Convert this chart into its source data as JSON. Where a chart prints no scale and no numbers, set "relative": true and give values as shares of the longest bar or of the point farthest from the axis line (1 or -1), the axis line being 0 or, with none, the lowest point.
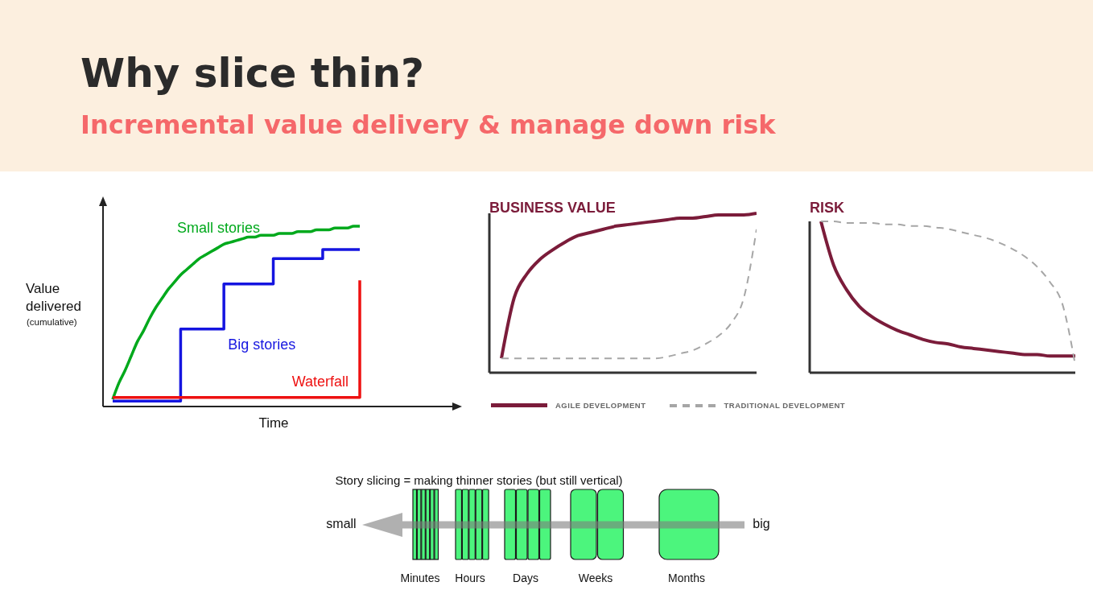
{
  "chart_data": [
    {
      "type": "other",
      "title": "Why slice thin?",
      "subtitle": "Incremental value delivery & manage down risk"
    },
    {
      "type": "line",
      "relative": true,
      "xlabel": "Time",
      "ylabel": "Value delivered",
      "annotations": [
        "(cumulative)"
      ],
      "categories": [
        null,
        null,
        null,
        null,
        null,
        null,
        null,
        null,
        null,
        null,
        null,
        null,
        null,
        null,
        null,
        null,
        null,
        null,
        null,
        null,
        null,
        null,
        null,
        null,
        null,
        null,
        null,
        null,
        null,
        null,
        null,
        null,
        null,
        null,
        null,
        null,
        null,
        null,
        null,
        null,
        null
      ],
      "series": [
        {
          "name": "Small stories",
          "color": "#00a91c",
          "values": [
            0.04,
            0.13,
            0.2,
            0.28,
            0.36,
            0.42,
            0.49,
            0.55,
            0.6,
            0.65,
            0.69,
            0.73,
            0.76,
            0.79,
            0.82,
            0.84,
            0.86,
            0.88,
            0.9,
            0.91,
            0.92,
            0.93,
            0.94,
            0.94,
            0.95,
            0.95,
            0.95,
            0.96,
            0.96,
            0.96,
            0.97,
            0.97,
            0.97,
            0.98,
            0.98,
            0.98,
            0.99,
            0.99,
            0.99,
            1,
            1
          ]
        },
        {
          "name": "Big stories",
          "type": "step",
          "color": "#1515e0",
          "values": [
            0.03,
            0.03,
            0.03,
            0.03,
            0.03,
            0.03,
            0.03,
            0.03,
            0.03,
            0.03,
            0.03,
            0.43,
            0.43,
            0.43,
            0.43,
            0.43,
            0.43,
            0.43,
            0.68,
            0.68,
            0.68,
            0.68,
            0.68,
            0.68,
            0.68,
            0.68,
            0.82,
            0.82,
            0.82,
            0.82,
            0.82,
            0.82,
            0.82,
            0.82,
            0.87,
            0.87,
            0.87,
            0.87,
            0.87,
            0.87,
            0.87
          ]
        },
        {
          "name": "Waterfall",
          "type": "step",
          "color": "#ee1111",
          "values": [
            0.05,
            0.05,
            0.05,
            0.05,
            0.05,
            0.05,
            0.05,
            0.05,
            0.05,
            0.05,
            0.05,
            0.05,
            0.05,
            0.05,
            0.05,
            0.05,
            0.05,
            0.05,
            0.05,
            0.05,
            0.05,
            0.05,
            0.05,
            0.05,
            0.05,
            0.05,
            0.05,
            0.05,
            0.05,
            0.05,
            0.05,
            0.05,
            0.05,
            0.05,
            0.05,
            0.05,
            0.05,
            0.05,
            0.05,
            0.05,
            0.7
          ]
        }
      ]
    },
    {
      "type": "line",
      "relative": true,
      "title": "BUSINESS VALUE",
      "legend": "bottom",
      "categories": [
        null,
        null,
        null,
        null,
        null,
        null,
        null,
        null,
        null,
        null,
        null,
        null,
        null,
        null,
        null,
        null,
        null,
        null,
        null,
        null,
        null
      ],
      "series": [
        {
          "name": "AGILE DEVELOPMENT",
          "color": "#7b1c3a",
          "values": [
            0.09,
            0.47,
            0.62,
            0.71,
            0.77,
            0.82,
            0.86,
            0.88,
            0.9,
            0.92,
            0.93,
            0.94,
            0.95,
            0.96,
            0.97,
            0.97,
            0.98,
            0.99,
            0.99,
            0.99,
            1
          ]
        },
        {
          "name": "TRADITIONAL DEVELOPMENT",
          "color": "#a6a6a6",
          "line_style": "dashed",
          "values": [
            0.09,
            0.09,
            0.09,
            0.09,
            0.09,
            0.09,
            0.09,
            0.09,
            0.09,
            0.09,
            0.09,
            0.09,
            0.09,
            0.1,
            0.12,
            0.14,
            0.18,
            0.23,
            0.31,
            0.47,
            0.9
          ]
        }
      ]
    },
    {
      "type": "line",
      "relative": true,
      "title": "RISK",
      "categories": [
        null,
        null,
        null,
        null,
        null,
        null,
        null,
        null,
        null,
        null,
        null,
        null,
        null,
        null,
        null,
        null,
        null,
        null,
        null,
        null,
        null
      ],
      "series": [
        {
          "color": "#7b1c3a",
          "values": [
            1,
            0.71,
            0.55,
            0.44,
            0.37,
            0.32,
            0.28,
            0.25,
            0.22,
            0.2,
            0.19,
            0.17,
            0.16,
            0.15,
            0.14,
            0.13,
            0.12,
            0.12,
            0.11,
            0.11,
            0.11
          ]
        },
        {
          "color": "#a6a6a6",
          "line_style": "dashed",
          "values": [
            1,
            1,
            0.99,
            0.99,
            0.99,
            0.98,
            0.98,
            0.97,
            0.97,
            0.96,
            0.95,
            0.93,
            0.91,
            0.89,
            0.86,
            0.82,
            0.77,
            0.7,
            0.6,
            0.45,
            0.05
          ]
        }
      ]
    },
    {
      "type": "other",
      "title": "Story slicing = making thinner stories (but still vertical)",
      "annotations": [
        "small",
        "big",
        "Minutes",
        "Hours",
        "Days",
        "Weeks",
        "Months"
      ]
    }
  ]
}
